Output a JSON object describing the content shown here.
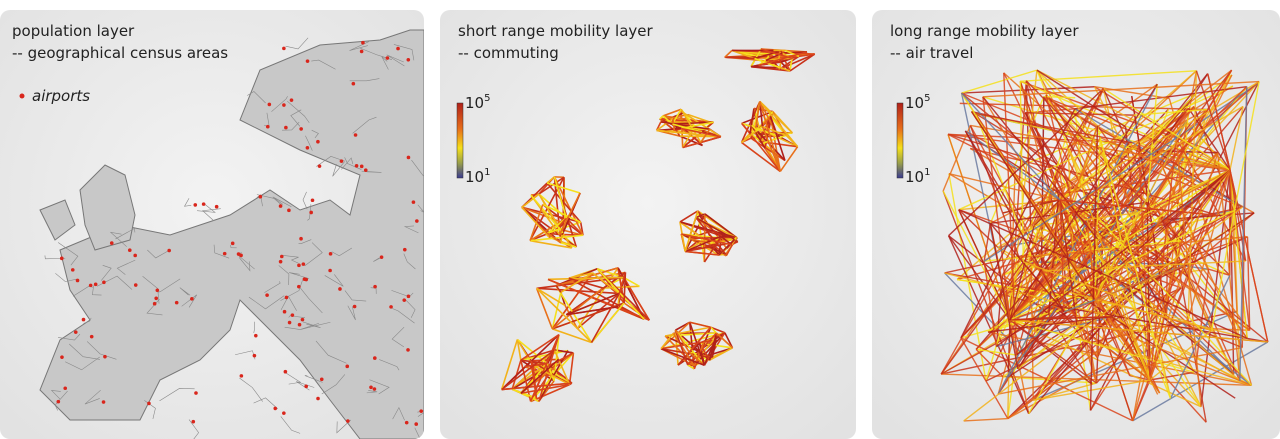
{
  "panels": [
    {
      "title": "population layer",
      "subtitle": "-- geographical census areas",
      "legend": "airports"
    },
    {
      "title": "short range mobility layer",
      "subtitle": "-- commuting",
      "colorbar": {
        "top": {
          "base": "10",
          "exponent": "5"
        },
        "bottom": {
          "base": "10",
          "exponent": "1"
        }
      }
    },
    {
      "title": "long range mobility layer",
      "subtitle": "-- air travel",
      "colorbar": {
        "top": {
          "base": "10",
          "exponent": "5"
        },
        "bottom": {
          "base": "10",
          "exponent": "1"
        }
      }
    }
  ]
}
